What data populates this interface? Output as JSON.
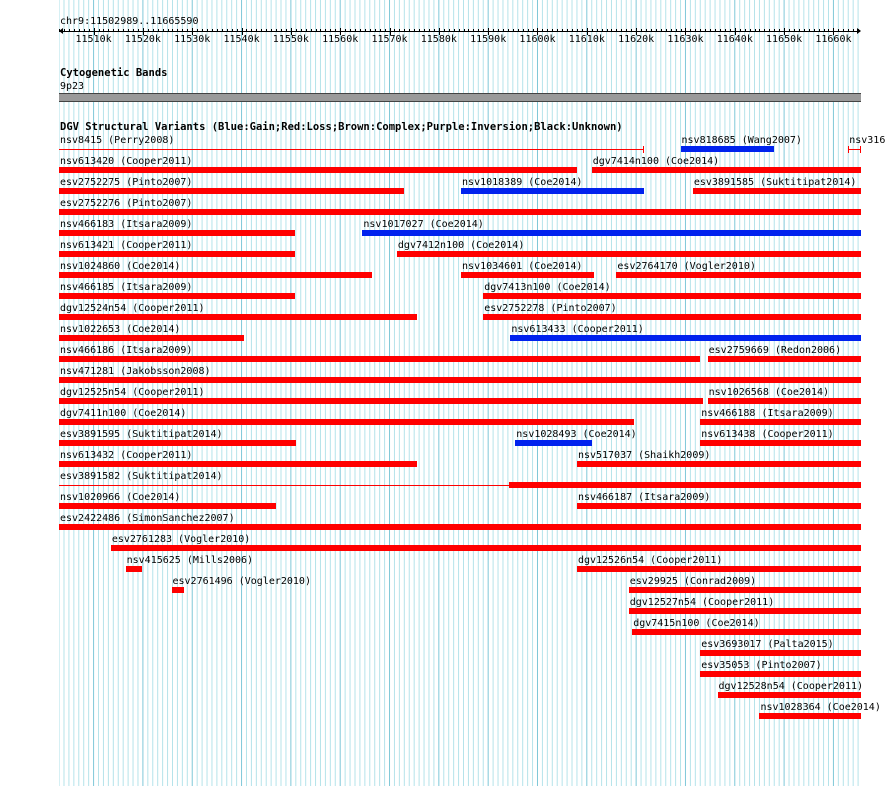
{
  "track": {
    "position": "chr9:11502989..11665590",
    "colors": {
      "grid_minor": "#b5e3ea",
      "grid_major": "#7fc8d8",
      "gain": "#0022ee",
      "loss": "#ff0000",
      "band": "#999999"
    }
  },
  "ruler": {
    "ticks": [
      "11510k",
      "11520k",
      "11530k",
      "11540k",
      "11550k",
      "11560k",
      "11570k",
      "11580k",
      "11590k",
      "11600k",
      "11610k",
      "11620k",
      "11630k",
      "11640k",
      "11650k",
      "11660k"
    ]
  },
  "cytoband": {
    "title": "Cytogenetic Bands",
    "band": "9p23"
  },
  "dgv": {
    "title": "DGV Structural Variants (Blue:Gain;Red:Loss;Brown:Complex;Purple:Inversion;Black:Unknown)",
    "features": [
      {
        "label": "nsv8415 (Perry2008)",
        "type": "loss",
        "style": "thin",
        "row": 0,
        "start": 11502989,
        "end": 11621500
      },
      {
        "label": "nsv818685 (Wang2007)",
        "type": "gain",
        "style": "bar",
        "row": 0,
        "start": 11629000,
        "end": 11648000
      },
      {
        "label": "nsv316",
        "type": "loss",
        "style": "thin",
        "row": 0,
        "start": 11663000,
        "end": 11665590
      },
      {
        "label": "nsv613420 (Cooper2011)",
        "type": "loss",
        "style": "bar",
        "row": 1,
        "start": 11502989,
        "end": 11608000
      },
      {
        "label": "dgv7414n100 (Coe2014)",
        "type": "loss",
        "style": "bar",
        "row": 1,
        "start": 11611000,
        "end": 11665590
      },
      {
        "label": "esv2752275 (Pinto2007)",
        "type": "loss",
        "style": "bar",
        "row": 2,
        "start": 11502989,
        "end": 11573000
      },
      {
        "label": "nsv1018389 (Coe2014)",
        "type": "gain",
        "style": "bar",
        "row": 2,
        "start": 11584500,
        "end": 11621500
      },
      {
        "label": "esv3891585 (Suktitipat2014)",
        "type": "loss",
        "style": "bar",
        "row": 2,
        "start": 11631500,
        "end": 11665590
      },
      {
        "label": "esv2752276 (Pinto2007)",
        "type": "loss",
        "style": "bar",
        "row": 3,
        "start": 11502989,
        "end": 11665590
      },
      {
        "label": "nsv466183 (Itsara2009)",
        "type": "loss",
        "style": "bar",
        "row": 4,
        "start": 11502989,
        "end": 11550800
      },
      {
        "label": "nsv1017027 (Coe2014)",
        "type": "gain",
        "style": "bar",
        "row": 4,
        "start": 11564500,
        "end": 11665590
      },
      {
        "label": "nsv613421 (Cooper2011)",
        "type": "loss",
        "style": "bar",
        "row": 5,
        "start": 11502989,
        "end": 11550800
      },
      {
        "label": "dgv7412n100 (Coe2014)",
        "type": "loss",
        "style": "bar",
        "row": 5,
        "start": 11571500,
        "end": 11665590
      },
      {
        "label": "nsv1024860 (Coe2014)",
        "type": "loss",
        "style": "bar",
        "row": 6,
        "start": 11502989,
        "end": 11566500
      },
      {
        "label": "nsv1034601 (Coe2014)",
        "type": "loss",
        "style": "bar",
        "row": 6,
        "start": 11584500,
        "end": 11611500
      },
      {
        "label": "esv2764170 (Vogler2010)",
        "type": "loss",
        "style": "bar",
        "row": 6,
        "start": 11616000,
        "end": 11665590
      },
      {
        "label": "nsv466185 (Itsara2009)",
        "type": "loss",
        "style": "bar",
        "row": 7,
        "start": 11502989,
        "end": 11550800
      },
      {
        "label": "dgv7413n100 (Coe2014)",
        "type": "loss",
        "style": "bar",
        "row": 7,
        "start": 11589000,
        "end": 11665590
      },
      {
        "label": "dgv12524n54 (Cooper2011)",
        "type": "loss",
        "style": "bar",
        "row": 8,
        "start": 11502989,
        "end": 11575500
      },
      {
        "label": "esv2752278 (Pinto2007)",
        "type": "loss",
        "style": "bar",
        "row": 8,
        "start": 11589000,
        "end": 11665590
      },
      {
        "label": "nsv1022653 (Coe2014)",
        "type": "loss",
        "style": "bar",
        "row": 9,
        "start": 11502989,
        "end": 11540500
      },
      {
        "label": "nsv613433 (Cooper2011)",
        "type": "gain",
        "style": "bar",
        "row": 9,
        "start": 11594500,
        "end": 11665590
      },
      {
        "label": "nsv466186 (Itsara2009)",
        "type": "loss",
        "style": "bar",
        "row": 10,
        "start": 11502989,
        "end": 11633000
      },
      {
        "label": "esv2759669 (Redon2006)",
        "type": "loss",
        "style": "bar",
        "row": 10,
        "start": 11634500,
        "end": 11665590
      },
      {
        "label": "nsv471281 (Jakobsson2008)",
        "type": "loss",
        "style": "bar",
        "row": 11,
        "start": 11502989,
        "end": 11665590
      },
      {
        "label": "dgv12525n54 (Cooper2011)",
        "type": "loss",
        "style": "bar",
        "row": 12,
        "start": 11502989,
        "end": 11633500
      },
      {
        "label": "nsv1026568 (Coe2014)",
        "type": "loss",
        "style": "bar",
        "row": 12,
        "start": 11634500,
        "end": 11665590
      },
      {
        "label": "dgv7411n100 (Coe2014)",
        "type": "loss",
        "style": "bar",
        "row": 13,
        "start": 11502989,
        "end": 11619500
      },
      {
        "label": "nsv466188 (Itsara2009)",
        "type": "loss",
        "style": "bar",
        "row": 13,
        "start": 11633000,
        "end": 11665590
      },
      {
        "label": "esv3891595 (Suktitipat2014)",
        "type": "loss",
        "style": "bar",
        "row": 14,
        "start": 11502989,
        "end": 11551000
      },
      {
        "label": "nsv1028493 (Coe2014)",
        "type": "gain",
        "style": "bar",
        "row": 14,
        "start": 11595500,
        "end": 11611000
      },
      {
        "label": "nsv613438 (Cooper2011)",
        "type": "loss",
        "style": "bar",
        "row": 14,
        "start": 11633000,
        "end": 11665590
      },
      {
        "label": "nsv613432 (Cooper2011)",
        "type": "loss",
        "style": "bar",
        "row": 15,
        "start": 11502989,
        "end": 11575500
      },
      {
        "label": "nsv517037 (Shaikh2009)",
        "type": "loss",
        "style": "bar",
        "row": 15,
        "start": 11608000,
        "end": 11665590
      },
      {
        "label": "esv3891582 (Suktitipat2014)",
        "type": "loss",
        "style": "thinbar",
        "row": 16,
        "start": 11502989,
        "end": 11665590,
        "thickStart": 11594300
      },
      {
        "label": "nsv1020966 (Coe2014)",
        "type": "loss",
        "style": "bar",
        "row": 17,
        "start": 11502989,
        "end": 11547000
      },
      {
        "label": "nsv466187 (Itsara2009)",
        "type": "loss",
        "style": "bar",
        "row": 17,
        "start": 11608000,
        "end": 11665590
      },
      {
        "label": "esv2422486 (SimonSanchez2007)",
        "type": "loss",
        "style": "bar",
        "row": 18,
        "start": 11502989,
        "end": 11665590
      },
      {
        "label": "esv2761283 (Vogler2010)",
        "type": "loss",
        "style": "bar",
        "row": 19,
        "start": 11513500,
        "end": 11665590
      },
      {
        "label": "nsv415625 (Mills2006)",
        "type": "loss",
        "style": "bar",
        "row": 20,
        "start": 11516500,
        "end": 11519800
      },
      {
        "label": "dgv12526n54 (Cooper2011)",
        "type": "loss",
        "style": "bar",
        "row": 20,
        "start": 11608000,
        "end": 11665590
      },
      {
        "label": "esv2761496 (Vogler2010)",
        "type": "loss",
        "style": "bar",
        "row": 21,
        "start": 11525800,
        "end": 11528300
      },
      {
        "label": "esv29925 (Conrad2009)",
        "type": "loss",
        "style": "bar",
        "row": 21,
        "start": 11618500,
        "end": 11665590
      },
      {
        "label": "dgv12527n54 (Cooper2011)",
        "type": "loss",
        "style": "bar",
        "row": 22,
        "start": 11618500,
        "end": 11665590
      },
      {
        "label": "dgv7415n100 (Coe2014)",
        "type": "loss",
        "style": "bar",
        "row": 23,
        "start": 11619200,
        "end": 11665590
      },
      {
        "label": "esv3693017 (Palta2015)",
        "type": "loss",
        "style": "bar",
        "row": 24,
        "start": 11633000,
        "end": 11665590
      },
      {
        "label": "esv35053 (Pinto2007)",
        "type": "loss",
        "style": "bar",
        "row": 25,
        "start": 11633000,
        "end": 11665590
      },
      {
        "label": "dgv12528n54 (Cooper2011)",
        "type": "loss",
        "style": "bar",
        "row": 26,
        "start": 11636500,
        "end": 11665590
      },
      {
        "label": "nsv1028364 (Coe2014)",
        "type": "loss",
        "style": "bar",
        "row": 27,
        "start": 11645000,
        "end": 11665590
      }
    ]
  }
}
